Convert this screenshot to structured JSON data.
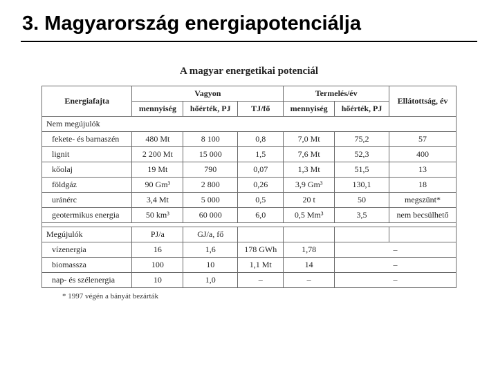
{
  "heading": "3. Magyarország energiapotenciálja",
  "tableTitle": "A magyar energetikai potenciál",
  "headers": {
    "col1": "Energiafajta",
    "group1": "Vagyon",
    "group2": "Termelés/év",
    "col6": "Ellátottság, év",
    "sub_menny": "mennyiség",
    "sub_hoertek": "hőérték,\nPJ",
    "sub_tjfo": "TJ/fő",
    "sub_menny2": "mennyiség",
    "sub_hoertek2": "hőérték,\nPJ"
  },
  "section1": "Nem megújulók",
  "rows1": [
    {
      "name": "fekete- és barnaszén",
      "c1": "480 Mt",
      "c2": "8 100",
      "c3": "0,8",
      "c4": "7,0 Mt",
      "c5": "75,2",
      "c6": "57"
    },
    {
      "name": "lignit",
      "c1": "2 200 Mt",
      "c2": "15 000",
      "c3": "1,5",
      "c4": "7,6 Mt",
      "c5": "52,3",
      "c6": "400"
    },
    {
      "name": "kőolaj",
      "c1": "19 Mt",
      "c2": "790",
      "c3": "0,07",
      "c4": "1,3 Mt",
      "c5": "51,5",
      "c6": "13"
    },
    {
      "name": "földgáz",
      "c1": "90 Gm³",
      "c2": "2 800",
      "c3": "0,26",
      "c4": "3,9 Gm³",
      "c5": "130,1",
      "c6": "18"
    },
    {
      "name": "uránérc",
      "c1": "3,4 Mt",
      "c2": "5 000",
      "c3": "0,5",
      "c4": "20 t",
      "c5": "50",
      "c6": "megszűnt*"
    },
    {
      "name": "geotermikus energia",
      "c1": "50 km³",
      "c2": "60 000",
      "c3": "6,0",
      "c4": "0,5 Mm³",
      "c5": "3,5",
      "c6": "nem becsülhető"
    }
  ],
  "section2": "Megújulók",
  "subhead2": {
    "c1": "PJ/a",
    "c2": "GJ/a, fő"
  },
  "rows2": [
    {
      "name": "vízenergia",
      "c1": "16",
      "c2": "1,6",
      "c3": "178 GWh",
      "c4": "1,78",
      "c5": "–"
    },
    {
      "name": "biomassza",
      "c1": "100",
      "c2": "10",
      "c3": "1,1 Mt",
      "c4": "14",
      "c5": "–"
    },
    {
      "name": "nap- és szélenergia",
      "c1": "10",
      "c2": "1,0",
      "c3": "–",
      "c4": "–",
      "c5": "–"
    }
  ],
  "footnote": "* 1997 végén a bányát bezárták"
}
